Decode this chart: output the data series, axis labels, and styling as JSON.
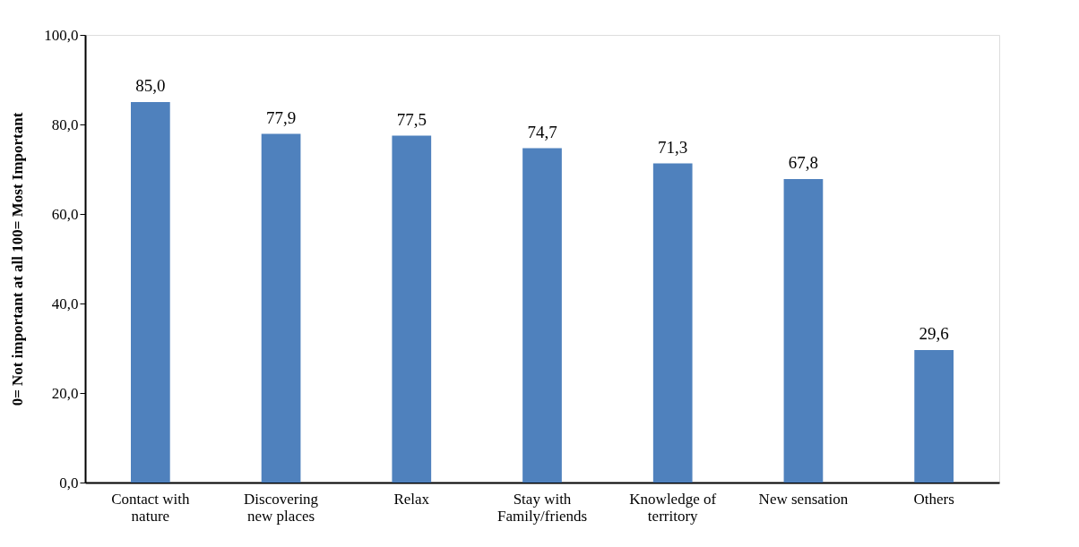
{
  "chart_data": {
    "type": "bar",
    "ylabel": "0= Not important at all   100= Most Important",
    "categories": [
      "Contact with\nnature",
      "Discovering\nnew places",
      "Relax",
      "Stay with\nFamily/friends",
      "Knowledge of\nterritory",
      "New sensation",
      "Others"
    ],
    "values": [
      85.0,
      77.9,
      77.5,
      74.7,
      71.3,
      67.8,
      29.6
    ],
    "value_labels": [
      "85,0",
      "77,9",
      "77,5",
      "74,7",
      "71,3",
      "67,8",
      "29,6"
    ],
    "color": "#4f81bd",
    "ylim": [
      0,
      100
    ],
    "yticks": [
      {
        "value": 0,
        "label": "0,0"
      },
      {
        "value": 20,
        "label": "20,0"
      },
      {
        "value": 40,
        "label": "40,0"
      },
      {
        "value": 60,
        "label": "60,0"
      },
      {
        "value": 80,
        "label": "80,0"
      },
      {
        "value": 100,
        "label": "100,0"
      }
    ],
    "grid": false
  }
}
